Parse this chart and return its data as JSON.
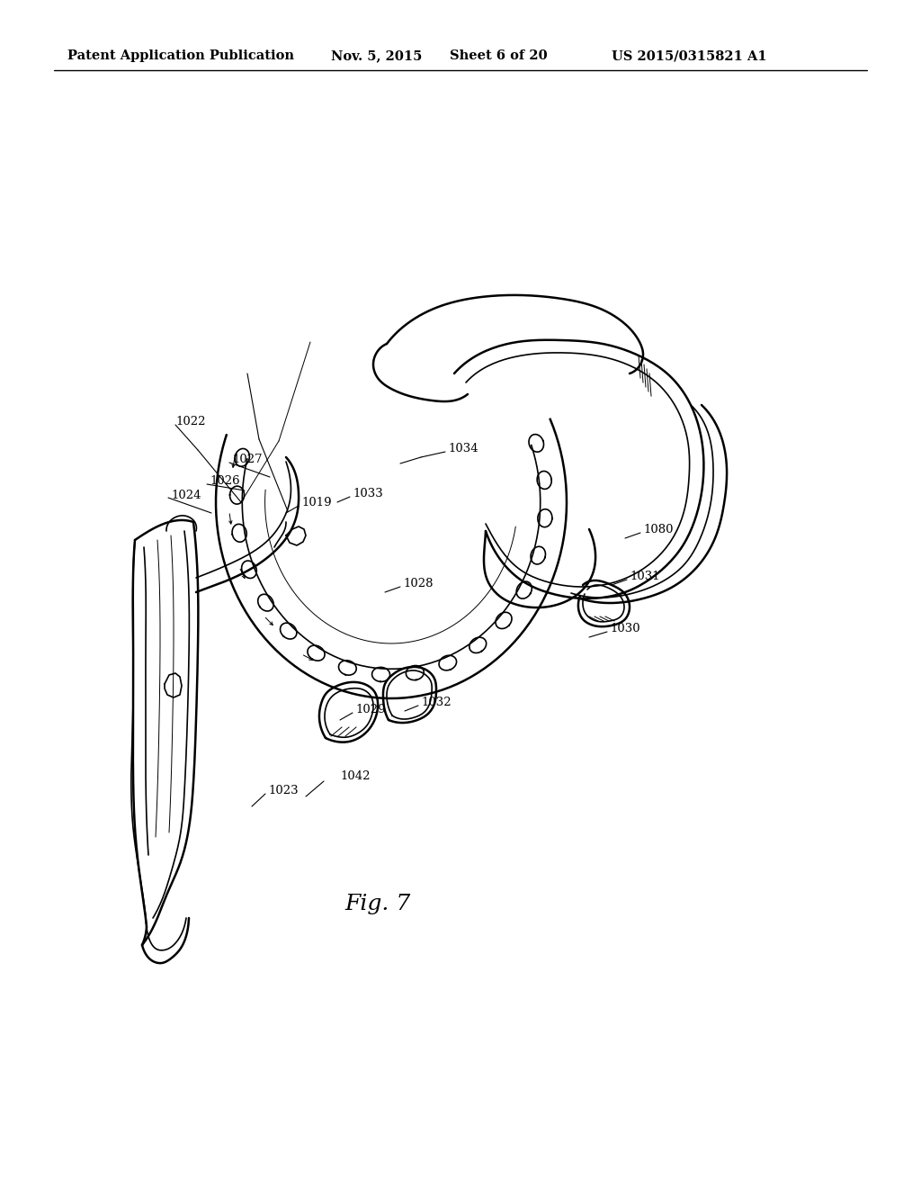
{
  "title_line": "Patent Application Publication",
  "date": "Nov. 5, 2015",
  "sheet": "Sheet 6 of 20",
  "patent_num": "US 2015/0315821 A1",
  "fig_label": "Fig. 7",
  "header_fontsize": 10.5,
  "fig_fontsize": 18,
  "label_fontsize": 9.5,
  "bg_color": "#ffffff",
  "line_color": "#000000"
}
